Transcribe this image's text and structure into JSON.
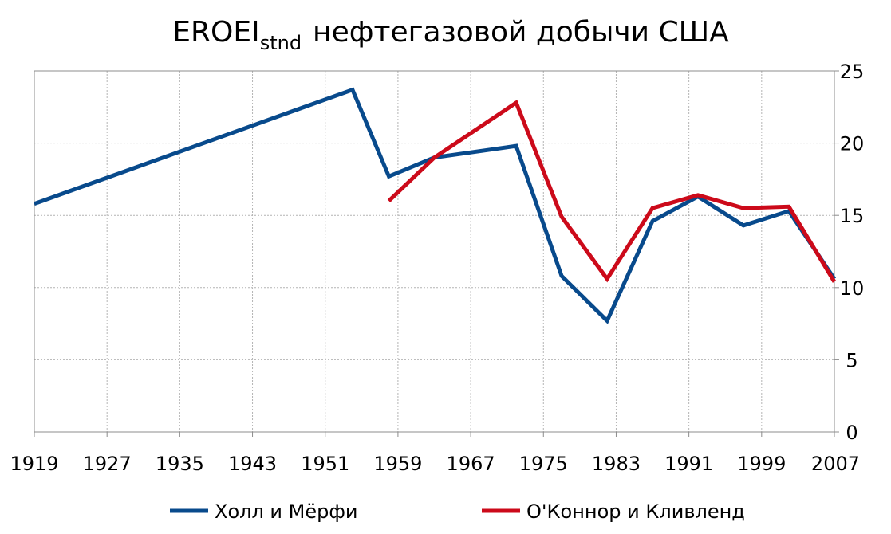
{
  "chart_data": {
    "type": "line",
    "title": {
      "main": "EROEI",
      "sub": "stnd",
      "rest": "нефтегазовой добычи США"
    },
    "xlim": [
      1919,
      2007
    ],
    "ylim": [
      0,
      25
    ],
    "x_ticks": [
      "1919",
      "1927",
      "1935",
      "1943",
      "1951",
      "1959",
      "1967",
      "1975",
      "1983",
      "1991",
      "1999",
      "2007"
    ],
    "y_ticks": [
      "0",
      "5",
      "10",
      "15",
      "20",
      "25"
    ],
    "y_axis_side": "right",
    "grid": true,
    "legend_position": "bottom",
    "series": [
      {
        "name": "Холл и Мёрфи",
        "color": "#084a8c",
        "points": [
          [
            1919,
            15.8
          ],
          [
            1954,
            23.7
          ],
          [
            1958,
            17.7
          ],
          [
            1963,
            19.0
          ],
          [
            1972,
            19.8
          ],
          [
            1977,
            10.8
          ],
          [
            1982,
            7.7
          ],
          [
            1987,
            14.6
          ],
          [
            1992,
            16.3
          ],
          [
            1997,
            14.3
          ],
          [
            2002,
            15.3
          ],
          [
            2007,
            10.6
          ]
        ]
      },
      {
        "name": "О'Коннор и Кливленд",
        "color": "#cc0a1a",
        "points": [
          [
            1958,
            16.0
          ],
          [
            1963,
            19.0
          ],
          [
            1972,
            22.8
          ],
          [
            1977,
            14.9
          ],
          [
            1982,
            10.6
          ],
          [
            1987,
            15.5
          ],
          [
            1992,
            16.4
          ],
          [
            1997,
            15.5
          ],
          [
            2002,
            15.6
          ],
          [
            2007,
            10.4
          ]
        ]
      }
    ]
  }
}
